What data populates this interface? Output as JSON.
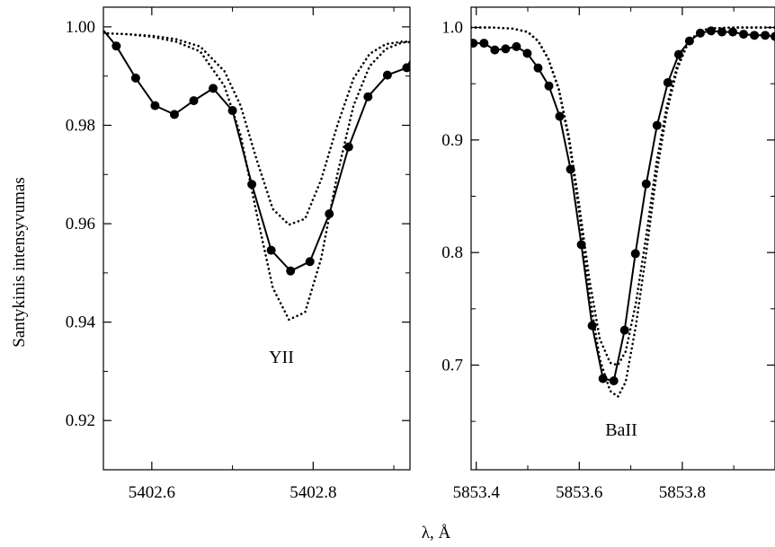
{
  "figure": {
    "ylabel": "Santykinis intensyvumas",
    "xlabel": "λ, Å"
  },
  "chart_data": [
    {
      "type": "line",
      "panel_label": "YII",
      "xlim": [
        5402.54,
        5402.92
      ],
      "ylim": [
        0.91,
        1.004
      ],
      "x_ticks": [
        5402.6,
        5402.8
      ],
      "x_tick_labels": [
        "5402.6",
        "5402.8"
      ],
      "x_minor_ticks": [
        5402.7,
        5402.9
      ],
      "y_ticks": [
        0.92,
        0.94,
        0.96,
        0.98,
        1.0
      ],
      "y_tick_labels": [
        "0.92",
        "0.94",
        "0.96",
        "0.98",
        "1.00"
      ],
      "y_minor_ticks": [
        0.93,
        0.95,
        0.97,
        0.99
      ],
      "grid": false,
      "series": [
        {
          "style": "solid-markers",
          "x": [
            5402.54,
            5402.556,
            5402.58,
            5402.604,
            5402.628,
            5402.652,
            5402.676,
            5402.7,
            5402.724,
            5402.748,
            5402.772,
            5402.796,
            5402.82,
            5402.844,
            5402.868,
            5402.892,
            5402.916,
            5402.93
          ],
          "y": [
            0.9993,
            0.9961,
            0.9896,
            0.984,
            0.9822,
            0.985,
            0.9875,
            0.983,
            0.968,
            0.9546,
            0.9504,
            0.9523,
            0.962,
            0.9756,
            0.9858,
            0.9902,
            0.9917,
            0.9962
          ],
          "markers_from_index": 1
        },
        {
          "style": "dotted",
          "x": [
            5402.54,
            5402.57,
            5402.6,
            5402.63,
            5402.66,
            5402.69,
            5402.71,
            5402.73,
            5402.75,
            5402.77,
            5402.79,
            5402.81,
            5402.83,
            5402.85,
            5402.87,
            5402.89,
            5402.91,
            5402.93
          ],
          "y": [
            0.9987,
            0.9985,
            0.998,
            0.997,
            0.995,
            0.988,
            0.978,
            0.962,
            0.947,
            0.9405,
            0.942,
            0.953,
            0.97,
            0.984,
            0.992,
            0.9955,
            0.9968,
            0.997
          ]
        },
        {
          "style": "dotted",
          "x": [
            5402.54,
            5402.57,
            5402.6,
            5402.63,
            5402.66,
            5402.69,
            5402.71,
            5402.73,
            5402.75,
            5402.77,
            5402.79,
            5402.81,
            5402.83,
            5402.85,
            5402.87,
            5402.89,
            5402.91,
            5402.93
          ],
          "y": [
            0.9987,
            0.9985,
            0.9982,
            0.9975,
            0.996,
            0.991,
            0.984,
            0.973,
            0.963,
            0.9598,
            0.961,
            0.969,
            0.98,
            0.9895,
            0.9945,
            0.9965,
            0.997,
            0.997
          ]
        }
      ]
    },
    {
      "type": "line",
      "panel_label": "BaII",
      "xlim": [
        5853.39,
        5853.98
      ],
      "ylim": [
        0.607,
        1.018
      ],
      "x_ticks": [
        5853.4,
        5853.6,
        5853.8
      ],
      "x_tick_labels": [
        "5853.4",
        "5853.6",
        "5853.8"
      ],
      "x_minor_ticks": [
        5853.5,
        5853.7,
        5853.9
      ],
      "y_ticks": [
        0.7,
        0.8,
        0.9,
        1.0
      ],
      "y_tick_labels": [
        "0.7",
        "0.8",
        "0.9",
        "1.0"
      ],
      "y_minor_ticks": [
        0.65,
        0.75,
        0.85,
        0.95
      ],
      "grid": false,
      "series": [
        {
          "style": "solid-markers",
          "x": [
            5853.394,
            5853.415,
            5853.436,
            5853.457,
            5853.478,
            5853.499,
            5853.52,
            5853.541,
            5853.562,
            5853.583,
            5853.604,
            5853.625,
            5853.646,
            5853.667,
            5853.688,
            5853.709,
            5853.73,
            5853.751,
            5853.772,
            5853.793,
            5853.814,
            5853.835,
            5853.856,
            5853.877,
            5853.898,
            5853.919,
            5853.94,
            5853.961,
            5853.98
          ],
          "y": [
            0.986,
            0.986,
            0.98,
            0.981,
            0.983,
            0.977,
            0.964,
            0.948,
            0.921,
            0.874,
            0.807,
            0.735,
            0.688,
            0.686,
            0.731,
            0.799,
            0.861,
            0.913,
            0.951,
            0.976,
            0.988,
            0.995,
            0.997,
            0.996,
            0.996,
            0.994,
            0.993,
            0.993,
            0.992
          ]
        },
        {
          "style": "dotted",
          "x": [
            5853.39,
            5853.43,
            5853.47,
            5853.5,
            5853.52,
            5853.54,
            5853.56,
            5853.58,
            5853.6,
            5853.62,
            5853.64,
            5853.66,
            5853.675,
            5853.69,
            5853.71,
            5853.73,
            5853.75,
            5853.77,
            5853.79,
            5853.81,
            5853.83,
            5853.85,
            5853.9,
            5853.98
          ],
          "y": [
            1.0,
            1.0,
            0.999,
            0.996,
            0.988,
            0.972,
            0.945,
            0.9,
            0.835,
            0.762,
            0.705,
            0.677,
            0.672,
            0.685,
            0.735,
            0.8,
            0.87,
            0.925,
            0.963,
            0.985,
            0.995,
            0.999,
            1.0,
            1.0
          ]
        },
        {
          "style": "dotted",
          "x": [
            5853.39,
            5853.43,
            5853.47,
            5853.5,
            5853.52,
            5853.54,
            5853.56,
            5853.58,
            5853.6,
            5853.62,
            5853.64,
            5853.66,
            5853.675,
            5853.69,
            5853.71,
            5853.73,
            5853.75,
            5853.77,
            5853.79,
            5853.81,
            5853.83,
            5853.85,
            5853.9,
            5853.98
          ],
          "y": [
            1.0,
            1.0,
            0.999,
            0.996,
            0.988,
            0.972,
            0.946,
            0.903,
            0.842,
            0.775,
            0.723,
            0.702,
            0.7,
            0.712,
            0.755,
            0.815,
            0.88,
            0.93,
            0.966,
            0.986,
            0.995,
            0.999,
            1.0,
            1.0
          ]
        }
      ]
    }
  ]
}
